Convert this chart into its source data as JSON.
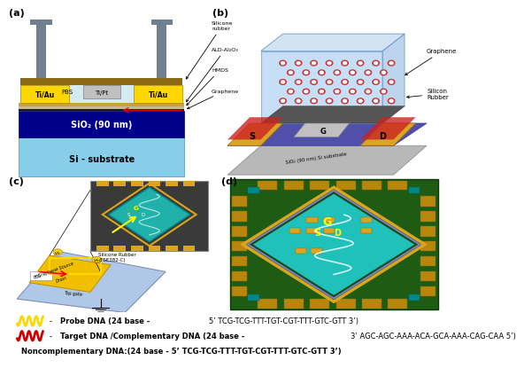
{
  "background_color": "#ffffff",
  "panel_a": {
    "si_color": "#87CEEB",
    "sio2_color": "#00008B",
    "graphene_color": "#1a1a1a",
    "hmds_color": "#D2B48C",
    "ald_color": "#B8860B",
    "electrode_color": "#FFD700",
    "gate_color": "#C0C0C0",
    "silicone_color": "#8B6914",
    "fluid_color": "#ADD8E6",
    "pillar_color": "#708090",
    "si_text": "Si - substrate",
    "sio2_text": "SiO₂ (90 nm)",
    "left_elec_text": "Ti/Au",
    "right_elec_text": "Ti/Au",
    "gate_text": "Ti/Pt",
    "pbs_text": "PBS",
    "ann_texts": [
      "Silicone\nrubber",
      "ALD-Al₂O₃",
      "HMDS",
      "Graphene"
    ],
    "graphene_arrow_color": "#CC0000"
  },
  "panel_b": {
    "substrate_color": "#B0B0B0",
    "sio2_color": "#87CEEB",
    "silicone_color": "#ADD8E6",
    "graphene_color": "#696969",
    "electrode_color": "#DAA520",
    "gate_color": "#C0C0C0",
    "dot_color": "#CC3333",
    "ann_texts": [
      "Graphene",
      "Silicon\nRubber"
    ],
    "s_label": "S",
    "d_label": "D",
    "g_label": "G",
    "substrate_label": "SiO₂ (90 nm) Si substrate"
  },
  "panel_c": {
    "platform_color": "#B0C8E8",
    "yellow_color": "#FFD700",
    "inset_bg": "#3A3A3A",
    "diamond_color": "#20B2AA",
    "labels": [
      "Graphene Source",
      "Drain",
      "PBS",
      "Top gate"
    ],
    "silicone_label": "Silicone Rubber\n(TSE382-C)"
  },
  "panel_d": {
    "pcb_color": "#1E5C14",
    "pad_color": "#B8860B",
    "diamond_color": "#20CDCD",
    "border1_color": "#9370DB",
    "border2_color": "#DAA520",
    "g_label": "G",
    "s_label": "S",
    "d_label": "D"
  },
  "legend": {
    "probe_color": "#FFD700",
    "target_color": "#CC0000",
    "probe_text_bold": "Probe DNA (24 base - ",
    "probe_text_normal": "5’ TCG-TCG-TTT-TGT-CGT-TTT-GTC-GTT 3’)",
    "target_text_bold": "Target DNA /Complementary DNA (24 base - ",
    "target_text_normal": "3’ AGC-AGC-AAA-ACA-GCA-AAA-CAG-CAA 5’)",
    "noncomp_text": "Noncomplementary DNA:(24 base - 5’ TCG-TCG-TTT-TGT-CGT-TTT-GTC-GTT 3’)"
  }
}
